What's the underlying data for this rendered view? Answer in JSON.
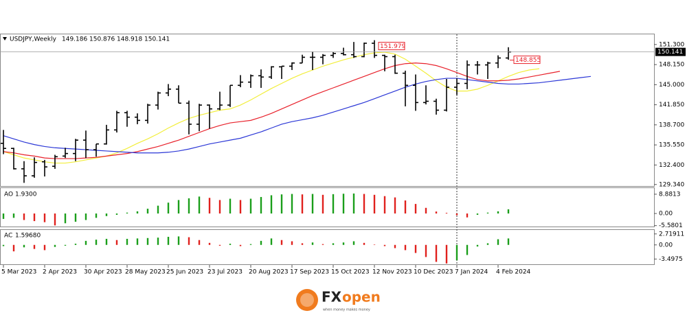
{
  "chart_data": [
    {
      "type": "ohlc",
      "title": "USDJPY,Weekly",
      "categories": [
        "5 Mar 2023",
        null,
        null,
        null,
        "2 Apr 2023",
        null,
        null,
        null,
        "30 Apr 2023",
        null,
        null,
        null,
        "28 May 2023",
        null,
        null,
        null,
        "25 Jun 2023",
        null,
        null,
        null,
        "23 Jul 2023",
        null,
        null,
        null,
        "20 Aug 2023",
        null,
        null,
        null,
        "17 Sep 2023",
        null,
        null,
        null,
        "15 Oct 2023",
        null,
        null,
        null,
        "12 Nov 2023",
        null,
        null,
        null,
        "10 Dec 2023",
        null,
        null,
        null,
        "7 Jan 2024",
        null,
        null,
        null,
        "4 Feb 2024",
        null,
        null,
        null,
        null,
        null,
        null,
        null,
        null,
        null
      ],
      "open": [
        135.8,
        135.0,
        131.8,
        130.7,
        132.9,
        132.2,
        133.8,
        134.2,
        136.3,
        134.8,
        135.7,
        137.9,
        140.6,
        139.9,
        139.4,
        141.8,
        143.7,
        144.3,
        142.1,
        138.8,
        141.8,
        141.2,
        141.8,
        144.9,
        145.4,
        146.4,
        146.2,
        147.8,
        147.9,
        148.4,
        149.3,
        149.3,
        149.6,
        149.9,
        149.7,
        149.4,
        151.5,
        149.6,
        149.4,
        146.8,
        144.9,
        142.2,
        142.4,
        141.0,
        144.6,
        145.2,
        148.1,
        148.1,
        148.4,
        149.186,
        null,
        null,
        null,
        null,
        null,
        null,
        null,
        null
      ],
      "high": [
        137.9,
        135.1,
        133.0,
        133.6,
        133.2,
        134.0,
        135.1,
        136.5,
        137.8,
        135.7,
        138.7,
        140.9,
        140.9,
        140.5,
        142.0,
        143.9,
        145.1,
        144.9,
        142.5,
        142.0,
        141.9,
        143.9,
        144.9,
        146.5,
        146.6,
        147.4,
        147.9,
        147.9,
        148.5,
        149.7,
        150.2,
        149.8,
        150.1,
        150.8,
        151.7,
        151.6,
        151.979,
        149.7,
        149.7,
        147.2,
        146.6,
        144.9,
        142.8,
        145.9,
        146.0,
        148.8,
        148.7,
        148.6,
        149.6,
        150.876,
        null,
        null,
        null,
        null,
        null,
        null,
        null,
        null
      ],
      "low": [
        134.1,
        131.7,
        129.6,
        130.4,
        130.6,
        131.8,
        133.5,
        133.0,
        133.5,
        133.7,
        135.6,
        137.5,
        138.4,
        138.8,
        138.9,
        141.1,
        143.2,
        142.1,
        137.2,
        137.7,
        138.1,
        141.0,
        141.5,
        144.6,
        144.5,
        144.5,
        145.9,
        145.9,
        147.3,
        148.4,
        147.3,
        148.2,
        149.2,
        149.6,
        149.2,
        149.3,
        149.2,
        147.1,
        146.7,
        141.6,
        140.9,
        141.9,
        140.3,
        140.8,
        143.4,
        144.3,
        146.6,
        145.9,
        147.6,
        148.918,
        null,
        null,
        null,
        null,
        null,
        null,
        null,
        null
      ],
      "close": [
        135.0,
        131.8,
        130.7,
        132.8,
        132.1,
        133.7,
        134.2,
        136.3,
        134.8,
        135.7,
        137.9,
        140.6,
        139.9,
        139.4,
        141.8,
        143.7,
        144.3,
        142.1,
        138.8,
        141.8,
        141.2,
        141.8,
        144.9,
        145.4,
        146.4,
        146.2,
        147.8,
        147.9,
        148.4,
        149.3,
        149.3,
        149.6,
        149.9,
        149.7,
        149.4,
        151.5,
        149.6,
        149.4,
        146.8,
        144.9,
        142.2,
        142.4,
        141.0,
        144.6,
        145.2,
        148.1,
        148.1,
        148.4,
        149.186,
        150.141,
        null,
        null,
        null,
        null,
        null,
        null,
        null,
        null
      ],
      "bar_color": "#000000",
      "series": [
        {
          "color": "#f2ee3a",
          "values": [
            134.5,
            134.0,
            133.5,
            133.2,
            132.9,
            132.7,
            132.7,
            132.9,
            133.2,
            133.5,
            133.8,
            134.3,
            135.0,
            135.8,
            136.5,
            137.3,
            138.2,
            139.0,
            139.7,
            140.2,
            140.6,
            141.0,
            141.2,
            141.8,
            142.6,
            143.5,
            144.4,
            145.2,
            146.0,
            146.7,
            147.3,
            147.9,
            148.4,
            148.9,
            149.3,
            149.7,
            150.0,
            150.1,
            149.8,
            149.0,
            147.9,
            146.8,
            145.6,
            144.6,
            144.0,
            144.0,
            144.3,
            144.9,
            145.6,
            146.3,
            146.9,
            147.3,
            147.5,
            null,
            null,
            null,
            null,
            null
          ]
        },
        {
          "color": "#e8202a",
          "values": [
            134.5,
            134.3,
            134.0,
            133.8,
            133.5,
            133.4,
            133.4,
            133.4,
            133.5,
            133.6,
            133.8,
            134.0,
            134.2,
            134.5,
            134.9,
            135.3,
            135.8,
            136.3,
            136.9,
            137.5,
            138.1,
            138.6,
            139.0,
            139.2,
            139.4,
            139.9,
            140.5,
            141.2,
            141.9,
            142.6,
            143.3,
            143.9,
            144.5,
            145.1,
            145.7,
            146.3,
            146.9,
            147.5,
            148.0,
            148.3,
            148.4,
            148.3,
            148.0,
            147.5,
            146.9,
            146.3,
            145.8,
            145.6,
            145.6,
            145.7,
            145.9,
            146.2,
            146.5,
            146.8,
            147.1,
            null,
            null,
            null
          ]
        },
        {
          "color": "#2a36d6",
          "values": [
            137.0,
            136.5,
            136.0,
            135.6,
            135.3,
            135.1,
            135.0,
            134.9,
            134.8,
            134.7,
            134.6,
            134.5,
            134.4,
            134.3,
            134.3,
            134.3,
            134.4,
            134.6,
            134.9,
            135.3,
            135.7,
            136.0,
            136.3,
            136.6,
            137.1,
            137.6,
            138.2,
            138.8,
            139.2,
            139.5,
            139.8,
            140.2,
            140.7,
            141.2,
            141.7,
            142.2,
            142.8,
            143.4,
            144.0,
            144.6,
            145.1,
            145.5,
            145.8,
            146.0,
            146.0,
            145.8,
            145.6,
            145.4,
            145.2,
            145.1,
            145.1,
            145.2,
            145.3,
            145.5,
            145.7,
            145.9,
            146.1,
            146.3
          ]
        }
      ],
      "price_tag": 148.855,
      "tag_color": "#e8202a",
      "ylim": [
        129.1,
        152.9
      ],
      "yticks": [
        {
          "value": 151.3,
          "label": "151.300"
        },
        {
          "value": 148.15,
          "label": "148.150"
        },
        {
          "value": 145,
          "label": "145.000"
        },
        {
          "value": 141.85,
          "label": "141.850"
        },
        {
          "value": 138.7,
          "label": "138.700"
        },
        {
          "value": 135.55,
          "label": "135.550"
        },
        {
          "value": 132.4,
          "label": "132.400"
        },
        {
          "value": 129.34,
          "label": "129.340"
        }
      ]
    },
    {
      "type": "bar",
      "title": "AO",
      "header_value": "1.9300",
      "up_color": "#1a9e1a",
      "down_color": "#e0201c",
      "values": [
        -2.5,
        -2.0,
        -3.0,
        -3.5,
        -4.0,
        -5.5,
        -4.5,
        -3.8,
        -3.0,
        -2.0,
        -1.2,
        -0.6,
        0.4,
        1.0,
        2.2,
        3.6,
        5.0,
        6.2,
        7.0,
        7.8,
        7.2,
        6.2,
        6.8,
        6.2,
        6.8,
        7.6,
        8.4,
        8.8,
        9.0,
        8.8,
        9.0,
        8.6,
        8.9,
        9.1,
        9.2,
        9.0,
        8.6,
        8.0,
        7.4,
        6.0,
        4.4,
        2.6,
        0.9,
        0.3,
        -0.8,
        -1.8,
        -0.6,
        0.4,
        1.0,
        1.93
      ],
      "ylim": [
        -6.0,
        11.7
      ],
      "yticks": [
        8.8813,
        {
          "value": 0,
          "label": "0.00"
        },
        -5.5801
      ]
    },
    {
      "type": "bar",
      "title": "AC",
      "header_value": "1.59680",
      "up_color": "#1a9e1a",
      "down_color": "#e0201c",
      "values": [
        -0.3,
        -1.6,
        -0.6,
        -1.0,
        -1.3,
        -0.5,
        -0.2,
        0.3,
        1.0,
        1.3,
        1.5,
        1.2,
        1.5,
        1.6,
        1.7,
        1.8,
        2.0,
        2.1,
        1.9,
        1.2,
        0.5,
        -0.2,
        0.3,
        -0.3,
        0.2,
        1.0,
        1.6,
        1.2,
        0.9,
        0.4,
        0.6,
        0.2,
        0.4,
        0.6,
        0.9,
        0.5,
        0.1,
        -0.3,
        -0.8,
        -1.3,
        -2.0,
        -3.0,
        -4.2,
        -4.6,
        -3.8,
        -2.5,
        -0.4,
        0.4,
        1.4,
        1.5968
      ],
      "ylim": [
        -4.8,
        3.7
      ],
      "yticks": [
        2.71911,
        {
          "value": 0,
          "label": "0.00"
        },
        -3.4975
      ]
    }
  ],
  "logo": {
    "fx": "FX",
    "open": "open",
    "tagline": "when money makes money"
  }
}
